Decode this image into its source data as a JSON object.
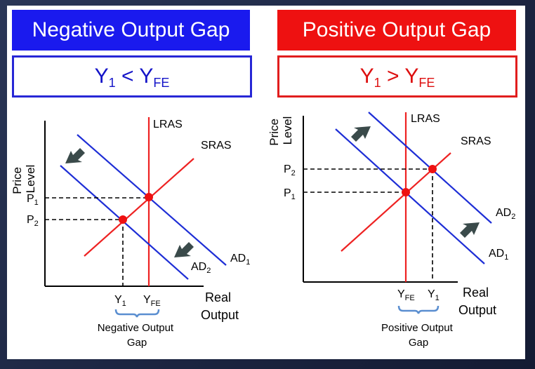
{
  "left": {
    "title": "Negative Output Gap",
    "condition": "Y1 < YFE",
    "ylabel": [
      "Price",
      "Level"
    ],
    "xlabel": [
      "Real",
      "Output"
    ],
    "lras": "LRAS",
    "sras": "SRAS",
    "ad_labels": [
      "AD1",
      "AD2"
    ],
    "price_labels": [
      "P1",
      "P2"
    ],
    "output_labels": [
      "Y1",
      "YFE"
    ],
    "gap_caption": [
      "Negative Output",
      "Gap"
    ]
  },
  "right": {
    "title": "Positive Output Gap",
    "condition": "Y1 > YFE",
    "ylabel": [
      "Price",
      "Level"
    ],
    "xlabel": [
      "Real",
      "Output"
    ],
    "lras": "LRAS",
    "sras": "SRAS",
    "ad_labels": [
      "AD2",
      "AD1"
    ],
    "price_labels": [
      "P2",
      "P1"
    ],
    "output_labels": [
      "YFE",
      "Y1"
    ],
    "gap_caption": [
      "Positive Output",
      "Gap"
    ]
  },
  "colors": {
    "negative_accent": "#1a1aee",
    "positive_accent": "#ee1111",
    "ad_line": "#1e2ed6",
    "as_line": "#ee2222",
    "bracket": "#5a8ed0",
    "arrow": "#3a4a4a"
  }
}
